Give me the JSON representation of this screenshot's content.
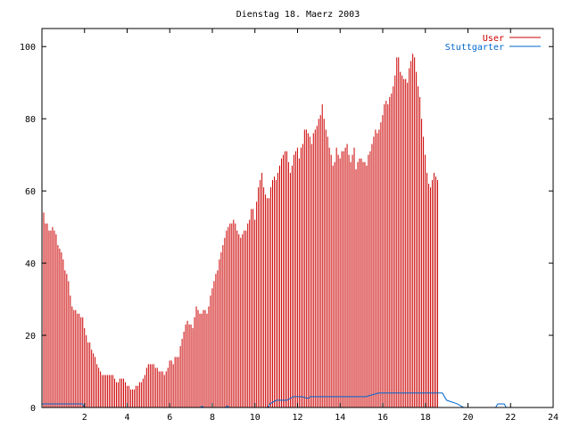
{
  "chart_data": {
    "type": "bar",
    "title": "Dienstag 18. Maerz 2003",
    "xlabel": "",
    "ylabel": "",
    "xlim": [
      0,
      24
    ],
    "ylim": [
      0,
      105
    ],
    "x_ticks": [
      2,
      4,
      6,
      8,
      10,
      12,
      14,
      16,
      18,
      20,
      22,
      24
    ],
    "y_ticks": [
      0,
      20,
      40,
      60,
      80,
      100
    ],
    "grid": false,
    "legend_position": "top-right",
    "series": [
      {
        "name": "User",
        "style": "impulses",
        "color": "#cc0000",
        "interval_hours": 0.0833,
        "values": [
          56,
          54,
          51,
          51,
          49,
          49,
          50,
          49,
          48,
          45,
          44,
          43,
          41,
          38,
          37,
          35,
          31,
          28,
          27,
          27,
          26,
          26,
          25,
          25,
          22,
          20,
          18,
          18,
          16,
          15,
          14,
          12,
          11,
          10,
          9,
          9,
          9,
          9,
          9,
          9,
          9,
          8,
          7,
          7,
          8,
          8,
          8,
          7,
          6,
          6,
          5,
          5,
          5,
          6,
          6,
          7,
          7,
          8,
          9,
          11,
          12,
          12,
          12,
          12,
          11,
          11,
          10,
          10,
          10,
          9,
          10,
          11,
          13,
          13,
          12,
          14,
          14,
          14,
          17,
          19,
          21,
          23,
          24,
          23,
          23,
          22,
          25,
          28,
          27,
          26,
          26,
          27,
          27,
          26,
          28,
          31,
          33,
          35,
          37,
          38,
          41,
          43,
          45,
          47,
          49,
          50,
          51,
          51,
          52,
          51,
          49,
          48,
          47,
          48,
          49,
          49,
          51,
          52,
          55,
          55,
          52,
          57,
          61,
          63,
          65,
          61,
          59,
          58,
          58,
          61,
          63,
          64,
          63,
          65,
          67,
          69,
          70,
          71,
          71,
          68,
          65,
          67,
          70,
          71,
          72,
          69,
          72,
          73,
          77,
          77,
          76,
          75,
          73,
          76,
          77,
          78,
          80,
          81,
          84,
          80,
          77,
          75,
          72,
          70,
          67,
          68,
          72,
          70,
          69,
          71,
          71,
          72,
          73,
          70,
          68,
          70,
          72,
          66,
          68,
          69,
          69,
          68,
          68,
          67,
          70,
          71,
          73,
          75,
          77,
          76,
          77,
          79,
          81,
          84,
          85,
          84,
          86,
          87,
          89,
          92,
          97,
          97,
          93,
          92,
          91,
          91,
          90,
          94,
          96,
          98,
          97,
          93,
          89,
          86,
          80,
          75,
          70,
          65,
          62,
          61,
          63,
          65,
          64,
          63
        ]
      },
      {
        "name": "Stuttgarter",
        "style": "lines",
        "color": "#0066cc",
        "values": [
          [
            0,
            1
          ],
          [
            1.9,
            1
          ],
          [
            2,
            0
          ],
          [
            7.45,
            0
          ],
          [
            7.5,
            0.4
          ],
          [
            7.6,
            0
          ],
          [
            8.6,
            0
          ],
          [
            8.7,
            0.4
          ],
          [
            8.8,
            0
          ],
          [
            10.6,
            0
          ],
          [
            10.7,
            1
          ],
          [
            11,
            2
          ],
          [
            11.5,
            2
          ],
          [
            11.8,
            3
          ],
          [
            12.2,
            3
          ],
          [
            12.5,
            2.5
          ],
          [
            12.6,
            3
          ],
          [
            15,
            3
          ],
          [
            15.2,
            3
          ],
          [
            15.8,
            4
          ],
          [
            18.8,
            4
          ],
          [
            19,
            2
          ],
          [
            19.5,
            1
          ],
          [
            19.8,
            0
          ],
          [
            21.3,
            0
          ],
          [
            21.4,
            1
          ],
          [
            21.7,
            1
          ],
          [
            21.8,
            0
          ],
          [
            24,
            0
          ]
        ]
      }
    ]
  }
}
